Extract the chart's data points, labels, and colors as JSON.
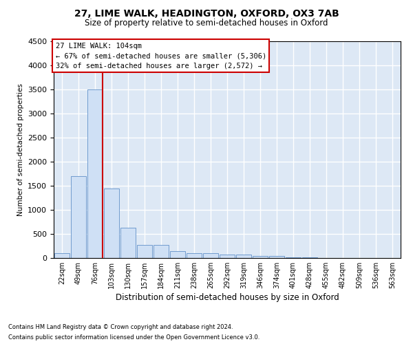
{
  "title": "27, LIME WALK, HEADINGTON, OXFORD, OX3 7AB",
  "subtitle": "Size of property relative to semi-detached houses in Oxford",
  "xlabel": "Distribution of semi-detached houses by size in Oxford",
  "ylabel": "Number of semi-detached properties",
  "bar_color": "#cfe0f5",
  "bar_edge_color": "#6090c8",
  "background_color": "#dde8f5",
  "grid_color": "#ffffff",
  "annotation_box_color": "#cc0000",
  "property_line_color": "#cc0000",
  "property_bin_index": 2,
  "annotation_text_line1": "27 LIME WALK: 104sqm",
  "annotation_text_line2": "← 67% of semi-detached houses are smaller (5,306)",
  "annotation_text_line3": "32% of semi-detached houses are larger (2,572) →",
  "footnote1": "Contains HM Land Registry data © Crown copyright and database right 2024.",
  "footnote2": "Contains public sector information licensed under the Open Government Licence v3.0.",
  "categories": [
    "22sqm",
    "49sqm",
    "76sqm",
    "103sqm",
    "130sqm",
    "157sqm",
    "184sqm",
    "211sqm",
    "238sqm",
    "265sqm",
    "292sqm",
    "319sqm",
    "346sqm",
    "374sqm",
    "401sqm",
    "428sqm",
    "455sqm",
    "482sqm",
    "509sqm",
    "536sqm",
    "563sqm"
  ],
  "values": [
    100,
    1700,
    3500,
    1450,
    625,
    275,
    275,
    150,
    100,
    100,
    75,
    75,
    50,
    50,
    20,
    10,
    5,
    5,
    3,
    2,
    2
  ],
  "ylim": [
    0,
    4500
  ],
  "yticks": [
    0,
    500,
    1000,
    1500,
    2000,
    2500,
    3000,
    3500,
    4000,
    4500
  ]
}
